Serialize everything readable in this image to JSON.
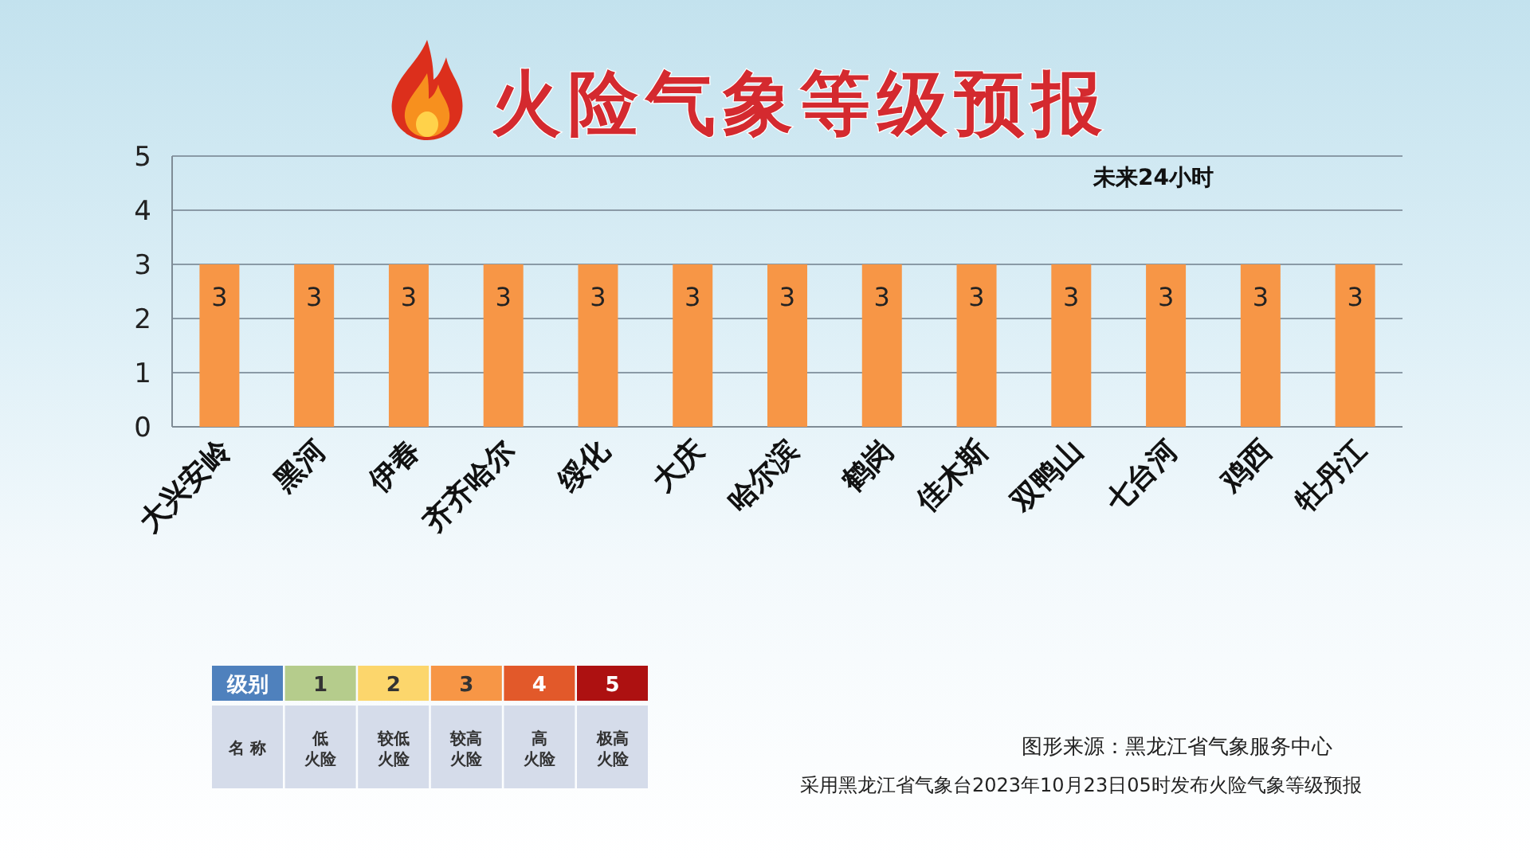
{
  "chart_data": {
    "type": "bar",
    "title": "火险气象等级预报",
    "categories": [
      "大兴安岭",
      "黑河",
      "伊春",
      "齐齐哈尔",
      "绥化",
      "大庆",
      "哈尔滨",
      "鹤岗",
      "佳木斯",
      "双鸭山",
      "七台河",
      "鸡西",
      "牡丹江"
    ],
    "values": [
      3,
      3,
      3,
      3,
      3,
      3,
      3,
      3,
      3,
      3,
      3,
      3,
      3
    ],
    "color": "#f79646",
    "ylim": [
      0,
      5
    ],
    "yticks": [
      0,
      1,
      2,
      3,
      4,
      5
    ],
    "grid": "y",
    "data_labels": true,
    "annotations": [
      "未来24小时",
      "级别",
      "1",
      "2",
      "3",
      "4",
      "5",
      "名 称",
      "低",
      "火险",
      "较低",
      "火险",
      "较高",
      "火险",
      "高",
      "火险",
      "极高",
      "火险",
      "图形来源：黑龙江省气象服务中心",
      "采用黑龙江省气象台2023年10月23日05时发布火险气象等级预报"
    ]
  }
}
